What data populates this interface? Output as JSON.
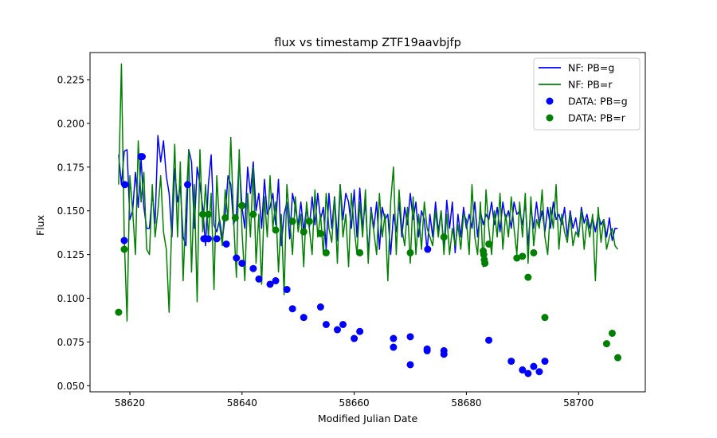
{
  "chart_data": {
    "type": "line",
    "title": "flux vs timestamp ZTF19aavbjfp",
    "xlabel": "Modified Julian Date",
    "ylabel": "Flux",
    "xlim": [
      58612.9,
      58711.9
    ],
    "ylim": [
      0.0465,
      0.2405
    ],
    "xticks": [
      58620,
      58640,
      58660,
      58680,
      58700
    ],
    "xtick_labels": [
      "58620",
      "58640",
      "58660",
      "58680",
      "58700"
    ],
    "yticks": [
      0.05,
      0.075,
      0.1,
      0.125,
      0.15,
      0.175,
      0.2,
      0.225
    ],
    "ytick_labels": [
      "0.050",
      "0.075",
      "0.100",
      "0.125",
      "0.150",
      "0.175",
      "0.200",
      "0.225"
    ],
    "grid": false,
    "legend_position": "top-right",
    "series": [
      {
        "name": "NF: PB=g",
        "kind": "line",
        "color": "#0000ff",
        "x": [
          58618.0,
          58618.5,
          58619.0,
          58619.5,
          58620.0,
          58620.5,
          58621.0,
          58621.5,
          58622.0,
          58622.5,
          58623.0,
          58623.5,
          58624.0,
          58624.5,
          58625.0,
          58625.5,
          58626.0,
          58626.5,
          58627.0,
          58627.5,
          58628.0,
          58628.5,
          58629.0,
          58629.5,
          58630.0,
          58630.5,
          58631.0,
          58631.5,
          58632.0,
          58632.5,
          58633.0,
          58633.5,
          58634.0,
          58634.5,
          58635.0,
          58635.5,
          58636.0,
          58636.5,
          58637.0,
          58637.5,
          58638.0,
          58638.5,
          58639.0,
          58639.5,
          58640.0,
          58640.5,
          58641.0,
          58641.5,
          58642.0,
          58642.5,
          58643.0,
          58643.5,
          58644.0,
          58644.5,
          58645.0,
          58645.5,
          58646.0,
          58646.5,
          58647.0,
          58647.5,
          58648.0,
          58648.5,
          58649.0,
          58649.5,
          58650.0,
          58650.5,
          58651.0,
          58651.5,
          58652.0,
          58652.5,
          58653.0,
          58653.5,
          58654.0,
          58654.5,
          58655.0,
          58655.5,
          58656.0,
          58656.5,
          58657.0,
          58657.5,
          58658.0,
          58658.5,
          58659.0,
          58659.5,
          58660.0,
          58660.5,
          58661.0,
          58661.5,
          58662.0,
          58662.5,
          58663.0,
          58663.5,
          58664.0,
          58664.5,
          58665.0,
          58665.5,
          58666.0,
          58666.5,
          58667.0,
          58667.5,
          58668.0,
          58668.5,
          58669.0,
          58669.5,
          58670.0,
          58670.5,
          58671.0,
          58671.5,
          58672.0,
          58672.5,
          58673.0,
          58673.5,
          58674.0,
          58674.5,
          58675.0,
          58675.5,
          58676.0,
          58676.5,
          58677.0,
          58677.5,
          58678.0,
          58678.5,
          58679.0,
          58679.5,
          58680.0,
          58680.5,
          58681.0,
          58681.5,
          58682.0,
          58682.5,
          58683.0,
          58683.5,
          58684.0,
          58684.5,
          58685.0,
          58685.5,
          58686.0,
          58686.5,
          58687.0,
          58687.5,
          58688.0,
          58688.5,
          58689.0,
          58689.5,
          58690.0,
          58690.5,
          58691.0,
          58691.5,
          58692.0,
          58692.5,
          58693.0,
          58693.5,
          58694.0,
          58694.5,
          58695.0,
          58695.5,
          58696.0,
          58696.5,
          58697.0,
          58697.5,
          58698.0,
          58698.5,
          58699.0,
          58699.5,
          58700.0,
          58700.5,
          58701.0,
          58701.5,
          58702.0,
          58702.5,
          58703.0,
          58703.5,
          58704.0,
          58704.5,
          58705.0,
          58705.5,
          58706.0,
          58706.5,
          58707.0
        ],
        "y": [
          0.182,
          0.165,
          0.184,
          0.185,
          0.145,
          0.15,
          0.172,
          0.152,
          0.18,
          0.152,
          0.14,
          0.14,
          0.16,
          0.143,
          0.193,
          0.178,
          0.19,
          0.17,
          0.16,
          0.135,
          0.174,
          0.155,
          0.164,
          0.135,
          0.13,
          0.185,
          0.178,
          0.14,
          0.175,
          0.165,
          0.152,
          0.13,
          0.165,
          0.182,
          0.142,
          0.138,
          0.145,
          0.134,
          0.147,
          0.17,
          0.165,
          0.142,
          0.148,
          0.18,
          0.152,
          0.14,
          0.175,
          0.16,
          0.178,
          0.15,
          0.16,
          0.14,
          0.168,
          0.148,
          0.152,
          0.16,
          0.142,
          0.168,
          0.13,
          0.148,
          0.155,
          0.134,
          0.16,
          0.152,
          0.142,
          0.155,
          0.138,
          0.152,
          0.14,
          0.158,
          0.142,
          0.16,
          0.145,
          0.152,
          0.128,
          0.16,
          0.14,
          0.158,
          0.133,
          0.165,
          0.145,
          0.16,
          0.155,
          0.14,
          0.162,
          0.135,
          0.163,
          0.14,
          0.155,
          0.125,
          0.152,
          0.14,
          0.155,
          0.128,
          0.152,
          0.145,
          0.148,
          0.125,
          0.148,
          0.138,
          0.155,
          0.135,
          0.152,
          0.142,
          0.16,
          0.145,
          0.155,
          0.135,
          0.15,
          0.145,
          0.127,
          0.148,
          0.135,
          0.155,
          0.138,
          0.15,
          0.128,
          0.156,
          0.14,
          0.155,
          0.126,
          0.148,
          0.135,
          0.152,
          0.14,
          0.148,
          0.14,
          0.155,
          0.135,
          0.15,
          0.142,
          0.148,
          0.145,
          0.155,
          0.142,
          0.152,
          0.138,
          0.155,
          0.145,
          0.15,
          0.14,
          0.155,
          0.148,
          0.15,
          0.142,
          0.155,
          0.13,
          0.152,
          0.14,
          0.155,
          0.142,
          0.15,
          0.138,
          0.152,
          0.14,
          0.155,
          0.145,
          0.148,
          0.142,
          0.152,
          0.135,
          0.15,
          0.14,
          0.146,
          0.135,
          0.152,
          0.143,
          0.148,
          0.14,
          0.146,
          0.138,
          0.148,
          0.142,
          0.145,
          0.135,
          0.146,
          0.133,
          0.14,
          0.14
        ]
      },
      {
        "name": "NF: PB=r",
        "kind": "line",
        "color": "#008000",
        "x": [
          58618.0,
          58618.5,
          58619.0,
          58619.5,
          58620.0,
          58620.5,
          58621.0,
          58621.5,
          58622.0,
          58622.5,
          58623.0,
          58623.5,
          58624.0,
          58624.5,
          58625.0,
          58625.5,
          58626.0,
          58626.5,
          58627.0,
          58627.5,
          58628.0,
          58628.5,
          58629.0,
          58629.5,
          58630.0,
          58630.5,
          58631.0,
          58631.5,
          58632.0,
          58632.5,
          58633.0,
          58633.5,
          58634.0,
          58634.5,
          58635.0,
          58635.5,
          58636.0,
          58636.5,
          58637.0,
          58637.5,
          58638.0,
          58638.5,
          58639.0,
          58639.5,
          58640.0,
          58640.5,
          58641.0,
          58641.5,
          58642.0,
          58642.5,
          58643.0,
          58643.5,
          58644.0,
          58644.5,
          58645.0,
          58645.5,
          58646.0,
          58646.5,
          58647.0,
          58647.5,
          58648.0,
          58648.5,
          58649.0,
          58649.5,
          58650.0,
          58650.5,
          58651.0,
          58651.5,
          58652.0,
          58652.5,
          58653.0,
          58653.5,
          58654.0,
          58654.5,
          58655.0,
          58655.5,
          58656.0,
          58656.5,
          58657.0,
          58657.5,
          58658.0,
          58658.5,
          58659.0,
          58659.5,
          58660.0,
          58660.5,
          58661.0,
          58661.5,
          58662.0,
          58662.5,
          58663.0,
          58663.5,
          58664.0,
          58664.5,
          58665.0,
          58665.5,
          58666.0,
          58666.5,
          58667.0,
          58667.5,
          58668.0,
          58668.5,
          58669.0,
          58669.5,
          58670.0,
          58670.5,
          58671.0,
          58671.5,
          58672.0,
          58672.5,
          58673.0,
          58673.5,
          58674.0,
          58674.5,
          58675.0,
          58675.5,
          58676.0,
          58676.5,
          58677.0,
          58677.5,
          58678.0,
          58678.5,
          58679.0,
          58679.5,
          58680.0,
          58680.5,
          58681.0,
          58681.5,
          58682.0,
          58682.5,
          58683.0,
          58683.5,
          58684.0,
          58684.5,
          58685.0,
          58685.5,
          58686.0,
          58686.5,
          58687.0,
          58687.5,
          58688.0,
          58688.5,
          58689.0,
          58689.5,
          58690.0,
          58690.5,
          58691.0,
          58691.5,
          58692.0,
          58692.5,
          58693.0,
          58693.5,
          58694.0,
          58694.5,
          58695.0,
          58695.5,
          58696.0,
          58696.5,
          58697.0,
          58697.5,
          58698.0,
          58698.5,
          58699.0,
          58699.5,
          58700.0,
          58700.5,
          58701.0,
          58701.5,
          58702.0,
          58702.5,
          58703.0,
          58703.5,
          58704.0,
          58704.5,
          58705.0,
          58705.5,
          58706.0,
          58706.5,
          58707.0
        ],
        "y": [
          0.165,
          0.234,
          0.135,
          0.087,
          0.17,
          0.15,
          0.125,
          0.19,
          0.155,
          0.172,
          0.128,
          0.125,
          0.165,
          0.135,
          0.15,
          0.17,
          0.138,
          0.128,
          0.092,
          0.145,
          0.188,
          0.135,
          0.178,
          0.11,
          0.152,
          0.185,
          0.115,
          0.165,
          0.098,
          0.185,
          0.138,
          0.165,
          0.135,
          0.16,
          0.105,
          0.17,
          0.142,
          0.13,
          0.162,
          0.145,
          0.192,
          0.145,
          0.112,
          0.185,
          0.138,
          0.11,
          0.16,
          0.135,
          0.175,
          0.12,
          0.148,
          0.108,
          0.158,
          0.135,
          0.17,
          0.14,
          0.155,
          0.115,
          0.148,
          0.102,
          0.165,
          0.145,
          0.125,
          0.158,
          0.138,
          0.148,
          0.118,
          0.155,
          0.14,
          0.125,
          0.162,
          0.135,
          0.148,
          0.125,
          0.16,
          0.14,
          0.132,
          0.158,
          0.12,
          0.165,
          0.135,
          0.148,
          0.118,
          0.16,
          0.14,
          0.125,
          0.155,
          0.135,
          0.162,
          0.12,
          0.15,
          0.138,
          0.125,
          0.16,
          0.135,
          0.148,
          0.11,
          0.155,
          0.175,
          0.125,
          0.162,
          0.14,
          0.13,
          0.152,
          0.12,
          0.158,
          0.125,
          0.148,
          0.128,
          0.155,
          0.14,
          0.135,
          0.13,
          0.15,
          0.135,
          0.15,
          0.125,
          0.148,
          0.125,
          0.14,
          0.13,
          0.142,
          0.128,
          0.148,
          0.145,
          0.125,
          0.165,
          0.135,
          0.125,
          0.155,
          0.118,
          0.162,
          0.14,
          0.125,
          0.15,
          0.135,
          0.16,
          0.128,
          0.148,
          0.135,
          0.158,
          0.14,
          0.125,
          0.155,
          0.135,
          0.16,
          0.12,
          0.158,
          0.13,
          0.145,
          0.14,
          0.162,
          0.135,
          0.125,
          0.152,
          0.14,
          0.165,
          0.128,
          0.148,
          0.138,
          0.132,
          0.148,
          0.13,
          0.138,
          0.135,
          0.15,
          0.128,
          0.145,
          0.135,
          0.148,
          0.11,
          0.152,
          0.132,
          0.145,
          0.128,
          0.135,
          0.14,
          0.13,
          0.128
        ]
      },
      {
        "name": "DATA: PB=g",
        "kind": "scatter",
        "color": "#0000ff",
        "x": [
          58619.0,
          58619.1,
          58622.0,
          58622.2,
          58630.3,
          58633.2,
          58634.0,
          58635.5,
          58637.2,
          58639.0,
          58640.0,
          58642.0,
          58643.0,
          58645.0,
          58646.0,
          58648.0,
          58649.0,
          58651.0,
          58654.0,
          58655.0,
          58657.0,
          58658.0,
          58660.0,
          58661.0,
          58667.0,
          58667.0,
          58670.0,
          58670.0,
          58673.0,
          58673.0,
          58673.1,
          58676.0,
          58676.0,
          58684.0,
          58688.0,
          58690.0,
          58691.0,
          58692.0,
          58693.0,
          58694.0
        ],
        "y": [
          0.133,
          0.165,
          0.181,
          0.181,
          0.165,
          0.134,
          0.134,
          0.134,
          0.131,
          0.123,
          0.12,
          0.117,
          0.111,
          0.108,
          0.11,
          0.105,
          0.094,
          0.089,
          0.095,
          0.085,
          0.082,
          0.085,
          0.077,
          0.081,
          0.077,
          0.072,
          0.078,
          0.062,
          0.071,
          0.07,
          0.128,
          0.07,
          0.068,
          0.076,
          0.064,
          0.059,
          0.057,
          0.061,
          0.058,
          0.064
        ]
      },
      {
        "name": "DATA: PB=r",
        "kind": "scatter",
        "color": "#008000",
        "x": [
          58618.0,
          58619.0,
          58633.0,
          58634.0,
          58637.0,
          58638.8,
          58640.0,
          58642.0,
          58646.0,
          58649.0,
          58651.0,
          58652.0,
          58654.0,
          58655.0,
          58661.0,
          58670.0,
          58676.0,
          58683.0,
          58683.1,
          58683.2,
          58683.3,
          58684.0,
          58689.0,
          58690.0,
          58691.0,
          58692.0,
          58694.0,
          58705.0,
          58706.0,
          58707.0
        ],
        "y": [
          0.092,
          0.128,
          0.148,
          0.148,
          0.146,
          0.146,
          0.153,
          0.148,
          0.139,
          0.144,
          0.138,
          0.144,
          0.137,
          0.126,
          0.126,
          0.126,
          0.135,
          0.127,
          0.125,
          0.122,
          0.12,
          0.131,
          0.123,
          0.124,
          0.112,
          0.126,
          0.089,
          0.074,
          0.08,
          0.066
        ]
      }
    ]
  }
}
